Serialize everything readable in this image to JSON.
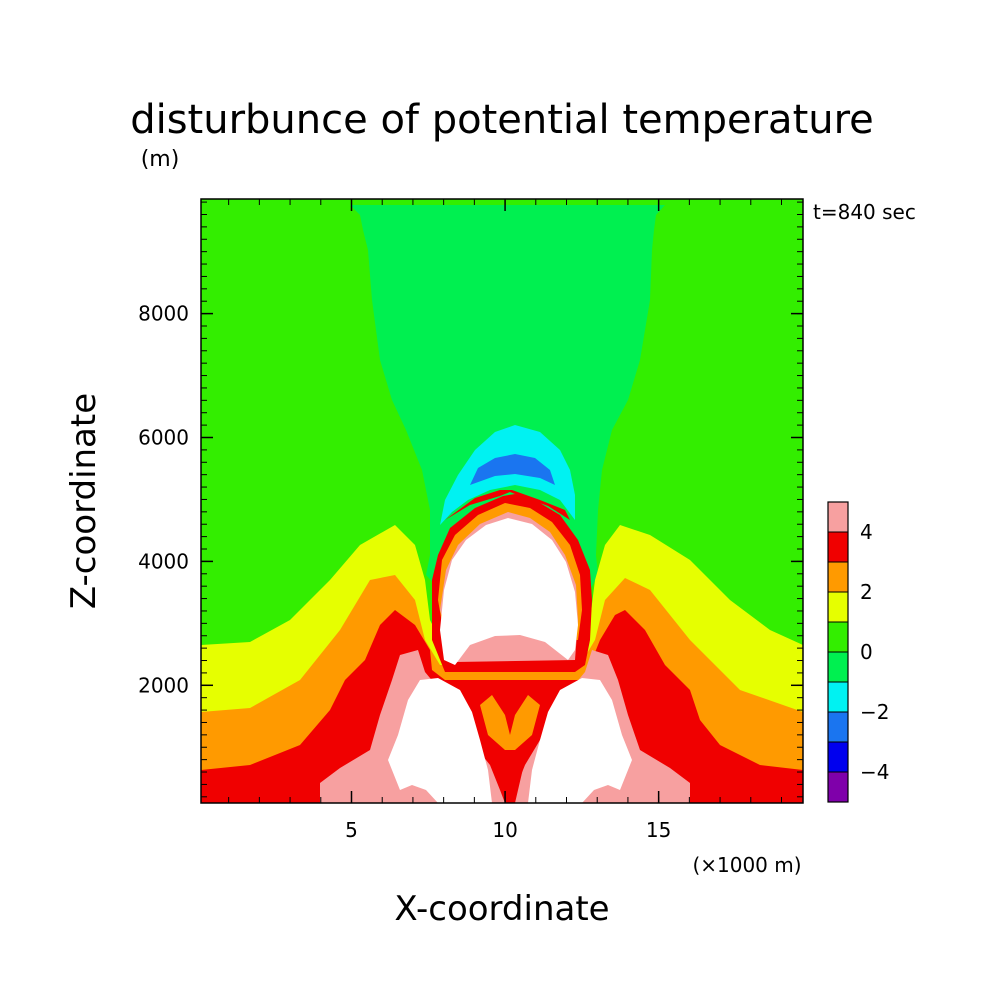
{
  "chart_data": {
    "type": "heatmap",
    "title": "disturbunce of potential temperature",
    "ylabel": "Z-coordinate",
    "yunit": "(m)",
    "xlabel": "X-coordinate",
    "xunit": "(×1000 m)",
    "time_label": "t=840 sec",
    "xlim": [
      0.1,
      19.7
    ],
    "ylim": [
      100,
      9850
    ],
    "x_ticks": [
      {
        "value": 5,
        "label": "5"
      },
      {
        "value": 10,
        "label": "10"
      },
      {
        "value": 15,
        "label": "15"
      }
    ],
    "y_ticks": [
      {
        "value": 2000,
        "label": "2000"
      },
      {
        "value": 4000,
        "label": "4000"
      },
      {
        "value": 6000,
        "label": "6000"
      },
      {
        "value": 8000,
        "label": "8000"
      }
    ],
    "colorbar": {
      "levels": [
        -5,
        -4,
        -3,
        -2,
        -1,
        0,
        1,
        2,
        3,
        4,
        5
      ],
      "colors": [
        "#7f00aa",
        "#0000ee",
        "#1a75f0",
        "#00f2f2",
        "#00f050",
        "#33ee00",
        "#e6ff00",
        "#ff9a00",
        "#f00000",
        "#f7a0a0"
      ],
      "tick_labels": [
        {
          "value": 4,
          "label": "4"
        },
        {
          "value": 2,
          "label": "2"
        },
        {
          "value": 0,
          "label": "0"
        },
        {
          "value": -2,
          "label": "−2"
        },
        {
          "value": -4,
          "label": "−4"
        }
      ],
      "above_max_color": "#ffffff"
    },
    "features": {
      "warm_core_center_x": 10.2,
      "warm_core_top_z": 5100,
      "cold_cap_z_range": [
        4700,
        6300
      ],
      "background_value_range": [
        -1,
        1
      ]
    }
  }
}
